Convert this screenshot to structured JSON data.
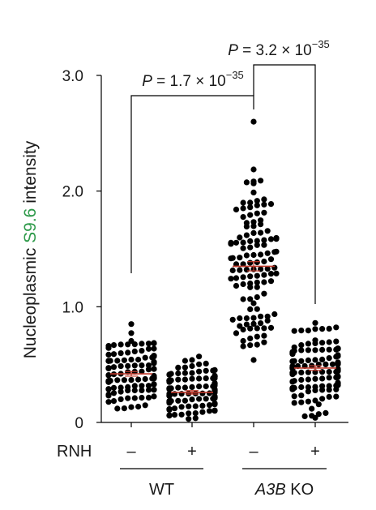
{
  "chart_data": {
    "type": "scatter",
    "ylabel_parts": [
      "Nucleoplasmic ",
      "S9.6",
      " intensity"
    ],
    "ylabel_accent_color": "#2e9a4a",
    "yticks": [
      {
        "value": 0,
        "label": "0"
      },
      {
        "value": 1.0,
        "label": "1.0"
      },
      {
        "value": 2.0,
        "label": "2.0"
      },
      {
        "value": 3.0,
        "label": "3.0"
      }
    ],
    "ylim": [
      0,
      3.0
    ],
    "row_label": "RNH",
    "groups": [
      {
        "rnh": "–",
        "mean": 0.42,
        "sem": 0.02,
        "min": 0.12,
        "max": 0.85,
        "n": 110
      },
      {
        "rnh": "+",
        "mean": 0.26,
        "sem": 0.015,
        "min": 0.03,
        "max": 0.57,
        "n": 130
      },
      {
        "rnh": "–",
        "mean": 1.35,
        "sem": 0.04,
        "min": 0.54,
        "max": 2.6,
        "n": 120
      },
      {
        "rnh": "+",
        "mean": 0.47,
        "sem": 0.02,
        "min": 0.04,
        "max": 0.86,
        "n": 130
      }
    ],
    "condition_labels": [
      {
        "text": "WT",
        "italic_part": "",
        "groups": [
          0,
          1
        ]
      },
      {
        "text": " KO",
        "italic_part": "A3B",
        "groups": [
          2,
          3
        ]
      }
    ],
    "comparisons": [
      {
        "from": 0,
        "to": 2,
        "p_prefix": "P",
        "p_text": " = 1.7 × 10",
        "p_exp": "−35"
      },
      {
        "from": 2,
        "to": 3,
        "p_prefix": "P",
        "p_text": " = 3.2 × 10",
        "p_exp": "−35"
      }
    ],
    "colors": {
      "dots": "#000000",
      "mean": "#c0392b",
      "text": "#1a1a1a"
    }
  }
}
